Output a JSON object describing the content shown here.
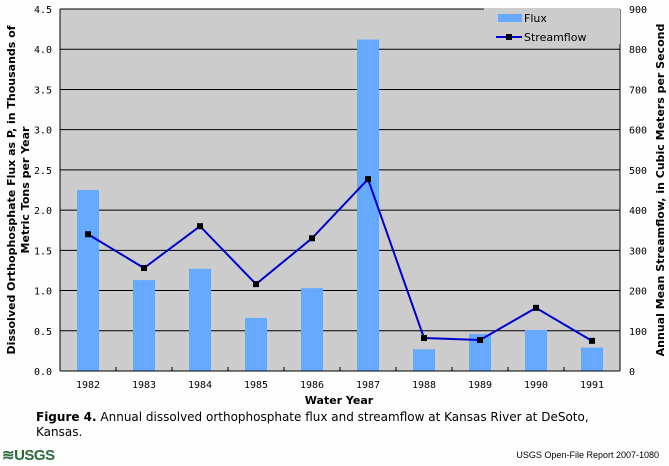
{
  "chart_data": {
    "type": "bar",
    "categories": [
      "1982",
      "1983",
      "1984",
      "1985",
      "1986",
      "1987",
      "1988",
      "1989",
      "1990",
      "1991"
    ],
    "series": [
      {
        "name": "Flux",
        "type": "bar",
        "axis": "left",
        "values": [
          2.25,
          1.13,
          1.27,
          0.66,
          1.03,
          4.12,
          0.27,
          0.46,
          0.51,
          0.29
        ]
      },
      {
        "name": "Streamflow",
        "type": "line",
        "axis": "right",
        "values": [
          340,
          256,
          360,
          216,
          330,
          477,
          82,
          77,
          157,
          75
        ]
      }
    ],
    "xlabel": "Water Year",
    "ylabel": "Dissolved Orthophosphate Flux as P, in Thousands of Metric Tons per Year",
    "ylabel_lines": [
      "Dissolved Orthophosphate Flux as P, in Thousands of",
      "Metric Tons per Year"
    ],
    "y2label": "Annual Mean Streamflow, in Cubic Meters per Second",
    "ylim": [
      0,
      4.5
    ],
    "y2lim": [
      0,
      900
    ],
    "yticks": [
      "0.0",
      "0.5",
      "1.0",
      "1.5",
      "2.0",
      "2.5",
      "3.0",
      "3.5",
      "4.0",
      "4.5"
    ],
    "y2ticks": [
      "0",
      "100",
      "200",
      "300",
      "400",
      "500",
      "600",
      "700",
      "800",
      "900"
    ],
    "grid": true,
    "legend": {
      "position": "top-right",
      "entries": [
        "Flux",
        "Streamflow"
      ]
    }
  },
  "colors": {
    "bar": "#66aaff",
    "line": "#0000cc",
    "marker": "#000000",
    "plot_bg": "#cccccc"
  },
  "caption": {
    "label": "Figure 4.",
    "text": " Annual dissolved orthophosphate flux and streamflow at Kansas River at DeSoto, Kansas."
  },
  "footer": {
    "logo": "≋USGS",
    "report": "USGS Open-File Report 2007-1080"
  }
}
